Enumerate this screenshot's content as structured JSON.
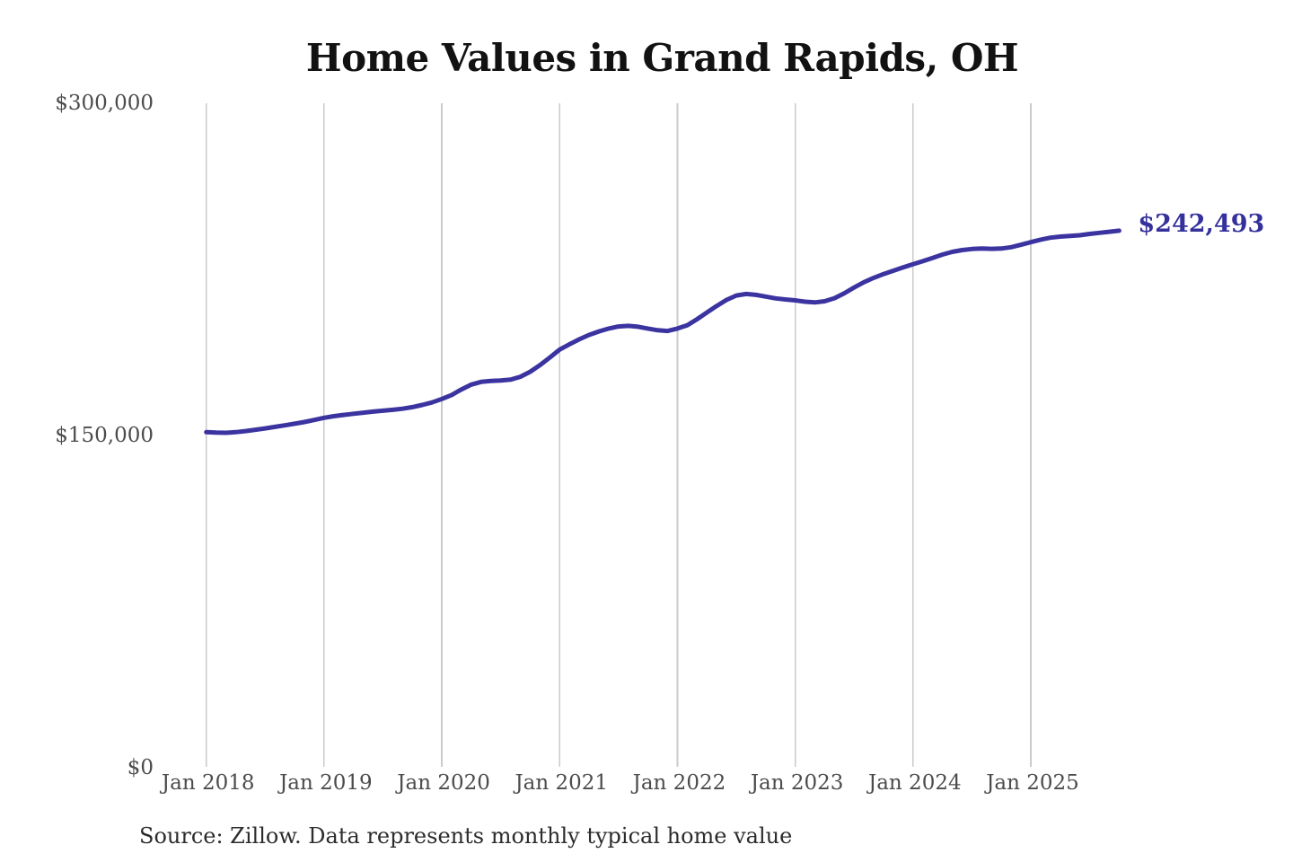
{
  "page": {
    "background": "#ffffff"
  },
  "chart_data": {
    "type": "line",
    "title": "Home Values in Grand Rapids, OH",
    "source": "Source: Zillow. Data represents monthly typical home value",
    "end_label": "$242,493",
    "latest_value": 242493,
    "x_start": "Jan 2018",
    "frequency": "monthly",
    "ylim": [
      0,
      300000
    ],
    "grid": "vertical-only",
    "legend": "none",
    "y_ticks": [
      {
        "label": "$300,000",
        "value": 300000
      },
      {
        "label": "$150,000",
        "value": 150000
      },
      {
        "label": "$0",
        "value": 0
      }
    ],
    "x_ticks": [
      {
        "label": "Jan 2018",
        "month_index": 0
      },
      {
        "label": "Jan 2019",
        "month_index": 12
      },
      {
        "label": "Jan 2020",
        "month_index": 24
      },
      {
        "label": "Jan 2021",
        "month_index": 36
      },
      {
        "label": "Jan 2022",
        "month_index": 48
      },
      {
        "label": "Jan 2023",
        "month_index": 60
      },
      {
        "label": "Jan 2024",
        "month_index": 72
      },
      {
        "label": "Jan 2025",
        "month_index": 84
      }
    ],
    "series": [
      {
        "name": "Typical home value",
        "values": [
          151500,
          151300,
          151200,
          151500,
          152000,
          152600,
          153200,
          153900,
          154600,
          155300,
          156100,
          157000,
          158000,
          158700,
          159300,
          159800,
          160300,
          160800,
          161200,
          161600,
          162100,
          162800,
          163800,
          164900,
          166500,
          168300,
          170800,
          173000,
          174200,
          174600,
          174800,
          175200,
          176500,
          178800,
          181800,
          185200,
          188800,
          191200,
          193400,
          195400,
          197000,
          198300,
          199200,
          199500,
          199100,
          198300,
          197500,
          197200,
          198300,
          199800,
          202500,
          205500,
          208500,
          211200,
          213200,
          213900,
          213500,
          212700,
          211900,
          211400,
          211000,
          210400,
          210100,
          210600,
          212000,
          214200,
          216800,
          219200,
          221200,
          222900,
          224400,
          225900,
          227300,
          228700,
          230200,
          231700,
          232900,
          233700,
          234200,
          234400,
          234300,
          234400,
          235000,
          236100,
          237300,
          238400,
          239300,
          239800,
          240100,
          240400,
          241000,
          241500,
          242000,
          242493
        ]
      }
    ],
    "colors": {
      "line": "#3b34a0",
      "end_label": "#34309c",
      "grid": "#cbcbcb",
      "axis_text": "#4c4c4c",
      "title": "#121212",
      "source_text": "#2c2c2c",
      "background": "#ffffff"
    }
  }
}
